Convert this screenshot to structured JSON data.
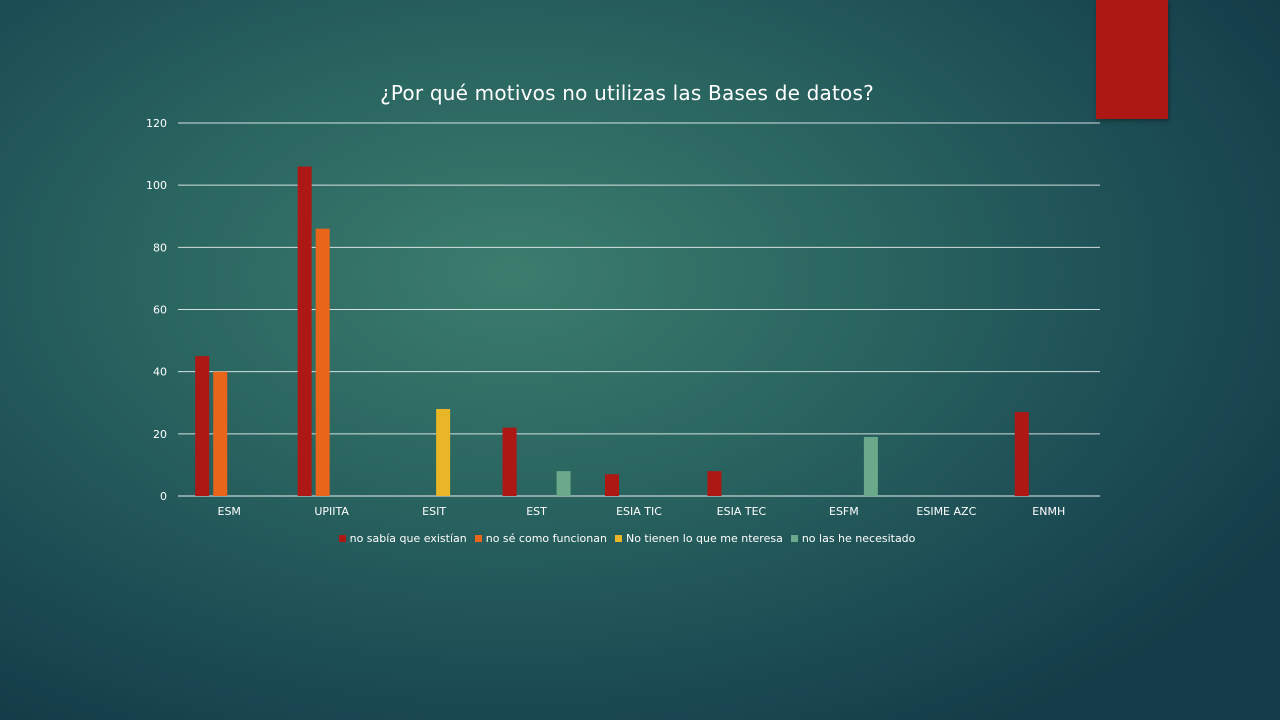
{
  "accent_color": "#ad1815",
  "chart_data": {
    "type": "bar",
    "title": "¿Por qué motivos no utilizas las Bases de datos?",
    "categories": [
      "ESM",
      "UPIITA",
      "ESIT",
      "EST",
      "ESIA TIC",
      "ESIA TEC",
      "ESFM",
      "ESIME AZC",
      "ENMH"
    ],
    "series": [
      {
        "name": "no sabía que existían",
        "color": "#ad1815",
        "values": [
          45,
          106,
          0,
          22,
          7,
          8,
          0,
          0,
          27
        ]
      },
      {
        "name": "no sé como funcionan",
        "color": "#e8651a",
        "values": [
          40,
          86,
          0,
          0,
          0,
          0,
          0,
          0,
          0
        ]
      },
      {
        "name": "No tienen  lo que me nteresa",
        "color": "#e8b626",
        "values": [
          0,
          0,
          28,
          0,
          0,
          0,
          0,
          0,
          0
        ]
      },
      {
        "name": "no las he necesitado",
        "color": "#6aaa8a",
        "values": [
          0,
          0,
          0,
          8,
          0,
          0,
          19,
          0,
          0
        ]
      }
    ],
    "yticks": [
      0,
      20,
      40,
      60,
      80,
      100,
      120
    ],
    "ylim": [
      0,
      120
    ],
    "grid": true,
    "legend": "bottom"
  }
}
